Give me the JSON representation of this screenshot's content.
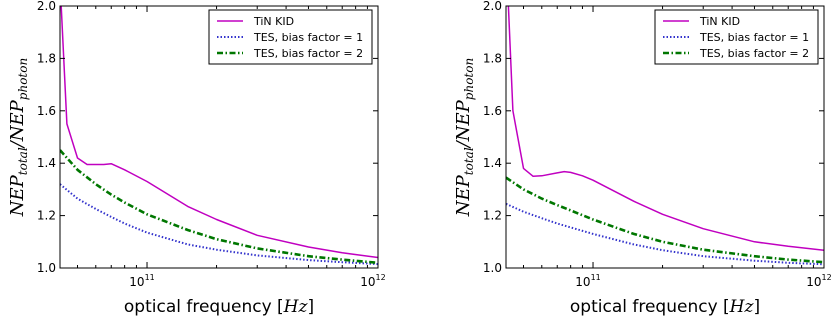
{
  "chart_data": [
    {
      "type": "line",
      "xscale": "log",
      "xlim": [
        42000000000.0,
        1000000000000.0
      ],
      "ylim": [
        1.0,
        2.0
      ],
      "xlabel": "optical frequency [Hz]",
      "ylabel": "NEP_total/NEP_photon",
      "legend_position": "top-right",
      "yticks": [
        "1.0",
        "1.2",
        "1.4",
        "1.6",
        "1.8",
        "2.0"
      ],
      "xticks": [
        {
          "base": "10",
          "exp": "11"
        },
        {
          "base": "10",
          "exp": "12"
        }
      ],
      "series": [
        {
          "name": "TiN KID",
          "color": "#c000c0",
          "style": "solid",
          "x": [
            42500000000.0,
            45000000000.0,
            50000000000.0,
            55000000000.0,
            60000000000.0,
            65000000000.0,
            70000000000.0,
            80000000000.0,
            100000000000.0,
            150000000000.0,
            200000000000.0,
            300000000000.0,
            500000000000.0,
            700000000000.0,
            1000000000000.0
          ],
          "y": [
            2.0,
            1.55,
            1.42,
            1.395,
            1.395,
            1.395,
            1.398,
            1.375,
            1.33,
            1.235,
            1.185,
            1.125,
            1.08,
            1.058,
            1.04
          ]
        },
        {
          "name": "TES, bias factor = 1",
          "color": "#3333cc",
          "style": "dotted",
          "x": [
            42000000000.0,
            50000000000.0,
            60000000000.0,
            70000000000.0,
            80000000000.0,
            100000000000.0,
            150000000000.0,
            200000000000.0,
            300000000000.0,
            500000000000.0,
            700000000000.0,
            1000000000000.0
          ],
          "y": [
            1.32,
            1.265,
            1.225,
            1.195,
            1.17,
            1.135,
            1.09,
            1.07,
            1.048,
            1.03,
            1.022,
            1.015
          ]
        },
        {
          "name": "TES, bias factor = 2",
          "color": "#007700",
          "style": "dashdot",
          "x": [
            42000000000.0,
            50000000000.0,
            60000000000.0,
            70000000000.0,
            80000000000.0,
            100000000000.0,
            150000000000.0,
            200000000000.0,
            300000000000.0,
            500000000000.0,
            700000000000.0,
            1000000000000.0
          ],
          "y": [
            1.45,
            1.375,
            1.32,
            1.28,
            1.25,
            1.205,
            1.145,
            1.11,
            1.075,
            1.045,
            1.032,
            1.02
          ]
        }
      ]
    },
    {
      "type": "line",
      "xscale": "log",
      "xlim": [
        42000000000.0,
        1000000000000.0
      ],
      "ylim": [
        1.0,
        2.0
      ],
      "xlabel": "optical frequency [Hz]",
      "ylabel": "NEP_total/NEP_photon",
      "legend_position": "top-right",
      "yticks": [
        "1.0",
        "1.2",
        "1.4",
        "1.6",
        "1.8",
        "2.0"
      ],
      "xticks": [
        {
          "base": "10",
          "exp": "11"
        },
        {
          "base": "10",
          "exp": "12"
        }
      ],
      "series": [
        {
          "name": "TiN KID",
          "color": "#c000c0",
          "style": "solid",
          "x": [
            43000000000.0,
            45000000000.0,
            50000000000.0,
            55000000000.0,
            60000000000.0,
            70000000000.0,
            75000000000.0,
            80000000000.0,
            90000000000.0,
            100000000000.0,
            150000000000.0,
            200000000000.0,
            300000000000.0,
            500000000000.0,
            700000000000.0,
            1000000000000.0
          ],
          "y": [
            2.0,
            1.6,
            1.38,
            1.35,
            1.352,
            1.363,
            1.368,
            1.365,
            1.352,
            1.335,
            1.255,
            1.205,
            1.15,
            1.1,
            1.083,
            1.068
          ]
        },
        {
          "name": "TES, bias factor = 1",
          "color": "#3333cc",
          "style": "dotted",
          "x": [
            42000000000.0,
            50000000000.0,
            60000000000.0,
            70000000000.0,
            80000000000.0,
            100000000000.0,
            150000000000.0,
            200000000000.0,
            300000000000.0,
            500000000000.0,
            700000000000.0,
            1000000000000.0
          ],
          "y": [
            1.245,
            1.215,
            1.19,
            1.17,
            1.155,
            1.13,
            1.09,
            1.068,
            1.045,
            1.028,
            1.02,
            1.014
          ]
        },
        {
          "name": "TES, bias factor = 2",
          "color": "#007700",
          "style": "dashdot",
          "x": [
            42000000000.0,
            50000000000.0,
            60000000000.0,
            70000000000.0,
            80000000000.0,
            100000000000.0,
            150000000000.0,
            200000000000.0,
            300000000000.0,
            500000000000.0,
            700000000000.0,
            1000000000000.0
          ],
          "y": [
            1.345,
            1.3,
            1.265,
            1.24,
            1.22,
            1.185,
            1.13,
            1.1,
            1.07,
            1.045,
            1.032,
            1.022
          ]
        }
      ]
    }
  ]
}
